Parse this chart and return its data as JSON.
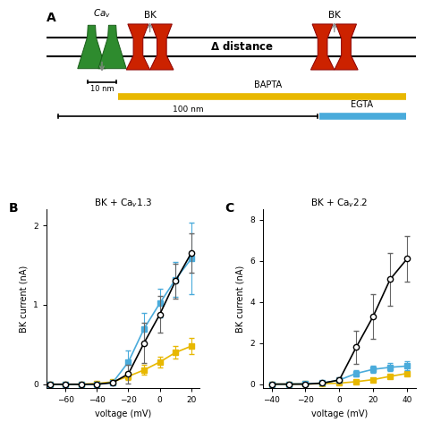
{
  "panel_B": {
    "title": "BK + Ca$_v$1.3",
    "xlabel": "voltage (mV)",
    "ylabel": "BK current (nA)",
    "xlim": [
      -72,
      25
    ],
    "ylim": [
      -0.05,
      2.2
    ],
    "xticks": [
      -60,
      -40,
      -20,
      0,
      20
    ],
    "yticks": [
      0,
      1,
      2
    ],
    "black_x": [
      -70,
      -60,
      -50,
      -40,
      -30,
      -20,
      -10,
      0,
      10,
      20
    ],
    "black_y": [
      0,
      0,
      0,
      0,
      0.02,
      0.13,
      0.52,
      0.88,
      1.3,
      1.65
    ],
    "black_yerr": [
      0,
      0,
      0,
      0,
      0.02,
      0.12,
      0.25,
      0.23,
      0.22,
      0.25
    ],
    "blue_x": [
      -70,
      -60,
      -50,
      -40,
      -30,
      -20,
      -10,
      0,
      10,
      20
    ],
    "blue_y": [
      0,
      0,
      0,
      0,
      0.02,
      0.28,
      0.7,
      1.02,
      1.32,
      1.58
    ],
    "blue_yerr": [
      0,
      0,
      0,
      0,
      0.02,
      0.15,
      0.2,
      0.18,
      0.22,
      0.45
    ],
    "yellow_x": [
      -70,
      -60,
      -50,
      -40,
      -30,
      -20,
      -10,
      0,
      10,
      20
    ],
    "yellow_y": [
      0,
      0,
      0,
      0.01,
      0.03,
      0.1,
      0.18,
      0.28,
      0.4,
      0.48
    ],
    "yellow_yerr": [
      0,
      0,
      0,
      0.01,
      0.02,
      0.05,
      0.06,
      0.07,
      0.08,
      0.1
    ]
  },
  "panel_C": {
    "title": "BK + Ca$_v$2.2",
    "xlabel": "voltage (mV)",
    "ylabel": "BK current (nA)",
    "xlim": [
      -45,
      45
    ],
    "ylim": [
      -0.2,
      8.5
    ],
    "xticks": [
      -40,
      -20,
      0,
      20,
      40
    ],
    "yticks": [
      0,
      2,
      4,
      6,
      8
    ],
    "black_x": [
      -40,
      -30,
      -20,
      -10,
      0,
      10,
      20,
      30,
      40
    ],
    "black_y": [
      0,
      0,
      0,
      0.05,
      0.2,
      1.8,
      3.3,
      5.1,
      6.1
    ],
    "black_yerr": [
      0,
      0,
      0,
      0.05,
      0.15,
      0.8,
      1.1,
      1.3,
      1.1
    ],
    "blue_x": [
      -40,
      -30,
      -20,
      -10,
      0,
      10,
      20,
      30,
      40
    ],
    "blue_y": [
      0,
      0,
      0.02,
      0.05,
      0.2,
      0.52,
      0.72,
      0.82,
      0.88
    ],
    "blue_yerr": [
      0,
      0,
      0.01,
      0.03,
      0.08,
      0.15,
      0.18,
      0.2,
      0.22
    ],
    "yellow_x": [
      -40,
      -30,
      -20,
      -10,
      0,
      10,
      20,
      30,
      40
    ],
    "yellow_y": [
      0,
      0,
      0.01,
      0.02,
      0.05,
      0.12,
      0.22,
      0.38,
      0.52
    ],
    "yellow_yerr": [
      0,
      0,
      0.01,
      0.01,
      0.03,
      0.05,
      0.06,
      0.08,
      0.1
    ]
  },
  "colors": {
    "black": "#000000",
    "blue": "#4AABDB",
    "yellow": "#E8B800",
    "green": "#2E8B2E",
    "red": "#CC2200",
    "dark_red": "#8B0000",
    "dark_green": "#1a5c1a",
    "bapta_bar": "#E8B800",
    "egta_bar": "#4AABDB",
    "gray_arrow": "#888888"
  },
  "background": "#ffffff"
}
